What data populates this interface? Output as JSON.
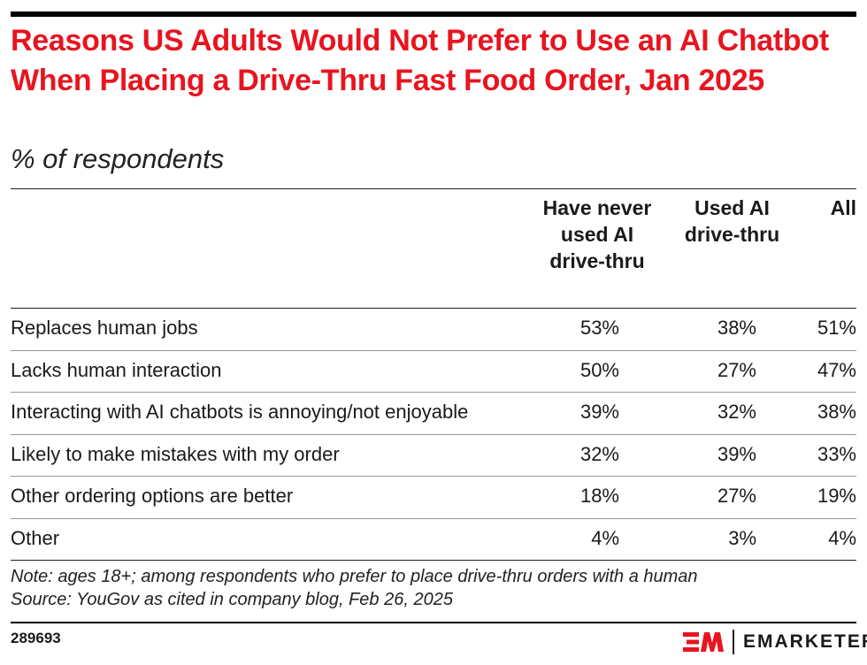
{
  "chart_data": {
    "type": "table",
    "title": "Reasons US Adults Would Not Prefer to Use an AI Chatbot When Placing a Drive-Thru Fast Food Order, Jan 2025",
    "subtitle": "% of respondents",
    "columns": [
      "Have never used AI drive-thru",
      "Used AI drive-thru",
      "All"
    ],
    "rows": [
      {
        "label": "Replaces human jobs",
        "values": [
          "53%",
          "38%",
          "51%"
        ]
      },
      {
        "label": "Lacks human interaction",
        "values": [
          "50%",
          "27%",
          "47%"
        ]
      },
      {
        "label": "Interacting with AI chatbots is annoying/not enjoyable",
        "values": [
          "39%",
          "32%",
          "38%"
        ]
      },
      {
        "label": "Likely to make mistakes with my order",
        "values": [
          "32%",
          "39%",
          "33%"
        ]
      },
      {
        "label": "Other ordering options are better",
        "values": [
          "18%",
          "27%",
          "19%"
        ]
      },
      {
        "label": "Other",
        "values": [
          "4%",
          "3%",
          "4%"
        ]
      }
    ],
    "note": "Note: ages 18+; among respondents who prefer to place drive-thru orders with a human",
    "source": "Source: YouGov as cited in company blog, Feb 26, 2025"
  },
  "footer": {
    "id": "289693",
    "brand": "EMARKETER",
    "logo_mark": "EM"
  },
  "colors": {
    "title": "#e8141f",
    "logo": "#e8141f"
  }
}
